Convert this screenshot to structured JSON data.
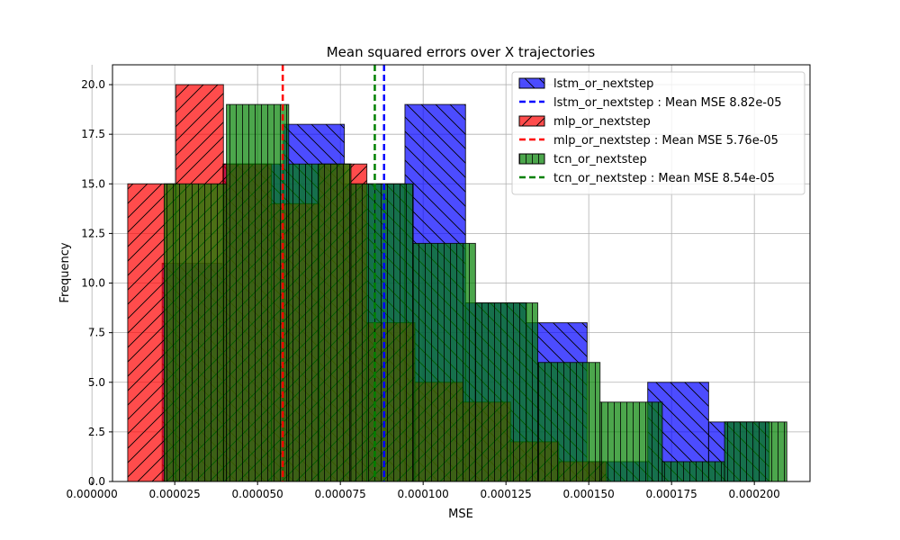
{
  "chart_data": {
    "type": "histogram",
    "title": "Mean squared errors over X trajectories",
    "xlabel": "MSE",
    "ylabel": "Frequency",
    "xlim": [
      6.2e-06,
      0.0002168
    ],
    "ylim": [
      0,
      21
    ],
    "xticks": [
      {
        "value": 0.0,
        "label": "0.000000"
      },
      {
        "value": 2.5e-05,
        "label": "0.000025"
      },
      {
        "value": 5e-05,
        "label": "0.000050"
      },
      {
        "value": 7.5e-05,
        "label": "0.000075"
      },
      {
        "value": 0.0001,
        "label": "0.000100"
      },
      {
        "value": 0.000125,
        "label": "0.000125"
      },
      {
        "value": 0.00015,
        "label": "0.000150"
      },
      {
        "value": 0.000175,
        "label": "0.000175"
      },
      {
        "value": 0.0002,
        "label": "0.000200"
      }
    ],
    "yticks": [
      {
        "value": 0,
        "label": "0.0"
      },
      {
        "value": 2.5,
        "label": "2.5"
      },
      {
        "value": 5,
        "label": "5.0"
      },
      {
        "value": 7.5,
        "label": "7.5"
      },
      {
        "value": 10,
        "label": "10.0"
      },
      {
        "value": 12.5,
        "label": "12.5"
      },
      {
        "value": 15,
        "label": "15.0"
      },
      {
        "value": 17.5,
        "label": "17.5"
      },
      {
        "value": 20,
        "label": "20.0"
      }
    ],
    "grid": true,
    "legend_position": "top-right",
    "series": [
      {
        "name": "lstm_or_nextstep",
        "color": "#0000ff",
        "hatch": "backslash",
        "bin_edges": [
          2.12e-05,
          3.95e-05,
          5.78e-05,
          7.62e-05,
          9.45e-05,
          0.0001128,
          0.0001312,
          0.0001495,
          0.0001678,
          0.0001862,
          0.0002045
        ],
        "counts": [
          11,
          16,
          18,
          15,
          19,
          9,
          8,
          1,
          5,
          3
        ],
        "mean_label": "lstm_or_nextstep : Mean MSE 8.82e-05",
        "mean_value": 8.82e-05
      },
      {
        "name": "mlp_or_nextstep",
        "color": "#ff0000",
        "hatch": "slash",
        "bin_edges": [
          1.08e-05,
          2.53e-05,
          3.97e-05,
          5.42e-05,
          6.86e-05,
          8.3e-05,
          9.75e-05,
          0.000112,
          0.0001264,
          0.0001409,
          0.0001553
        ],
        "counts": [
          15,
          20,
          16,
          14,
          16,
          8,
          5,
          4,
          2,
          1
        ],
        "mean_label": "mlp_or_nextstep : Mean MSE 5.76e-05",
        "mean_value": 5.76e-05
      },
      {
        "name": "tcn_or_nextstep",
        "color": "#008000",
        "hatch": "vertical",
        "bin_edges": [
          2.18e-05,
          4.06e-05,
          5.94e-05,
          7.82e-05,
          9.7e-05,
          0.0001158,
          0.0001346,
          0.0001534,
          0.0001722,
          0.000191,
          0.0002098
        ],
        "counts": [
          15,
          19,
          16,
          15,
          12,
          9,
          6,
          4,
          1,
          3
        ],
        "mean_label": "tcn_or_nextstep : Mean MSE 8.54e-05",
        "mean_value": 8.54e-05
      }
    ]
  }
}
